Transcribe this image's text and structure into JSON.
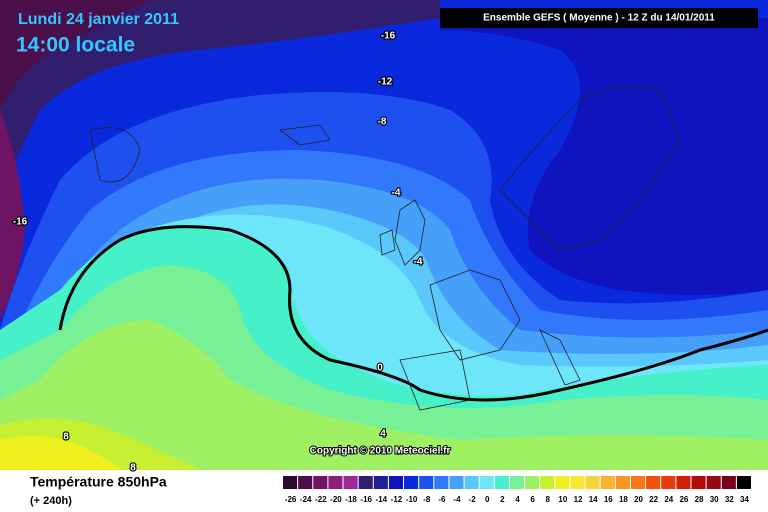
{
  "header": {
    "date": "Lundi 24 janvier 2011",
    "time": "14:00 locale",
    "model": "Ensemble GEFS ( Moyenne )  -  12 Z du 14/01/2011"
  },
  "copyright": "Copyright © 2010 Meteociel.fr",
  "footer": {
    "title": "Température 850hPa",
    "lead": "(+ 240h)"
  },
  "contour_labels": [
    "-16",
    "-12",
    "-8",
    "-4",
    "-4",
    "0",
    "4",
    "8",
    "8",
    "-16"
  ],
  "legend": {
    "items": [
      {
        "value": -26,
        "color": "#2d0a2d"
      },
      {
        "value": -24,
        "color": "#4b0f4b"
      },
      {
        "value": -22,
        "color": "#6e1464"
      },
      {
        "value": -20,
        "color": "#8c1e7d"
      },
      {
        "value": -18,
        "color": "#a02896"
      },
      {
        "value": -16,
        "color": "#321e6e"
      },
      {
        "value": -14,
        "color": "#1e1e96"
      },
      {
        "value": -12,
        "color": "#0f14be"
      },
      {
        "value": -10,
        "color": "#0a28dc"
      },
      {
        "value": -8,
        "color": "#1e50f0"
      },
      {
        "value": -6,
        "color": "#3278fa"
      },
      {
        "value": -4,
        "color": "#46a0fa"
      },
      {
        "value": -2,
        "color": "#5ac8fa"
      },
      {
        "value": 0,
        "color": "#6ee6fa"
      },
      {
        "value": 2,
        "color": "#46f0c8"
      },
      {
        "value": 4,
        "color": "#78f096"
      },
      {
        "value": 6,
        "color": "#a0f064"
      },
      {
        "value": 8,
        "color": "#c8f032"
      },
      {
        "value": 10,
        "color": "#f0f01e"
      },
      {
        "value": 12,
        "color": "#fae632"
      },
      {
        "value": 14,
        "color": "#fad23c"
      },
      {
        "value": 16,
        "color": "#fab432"
      },
      {
        "value": 18,
        "color": "#fa9628"
      },
      {
        "value": 20,
        "color": "#fa7814"
      },
      {
        "value": 22,
        "color": "#f0500a"
      },
      {
        "value": 24,
        "color": "#e63c0a"
      },
      {
        "value": 26,
        "color": "#d21e0a"
      },
      {
        "value": 28,
        "color": "#b40a0a"
      },
      {
        "value": 30,
        "color": "#960a14"
      },
      {
        "value": 32,
        "color": "#78001e"
      },
      {
        "value": 34,
        "color": "#000000"
      }
    ]
  }
}
